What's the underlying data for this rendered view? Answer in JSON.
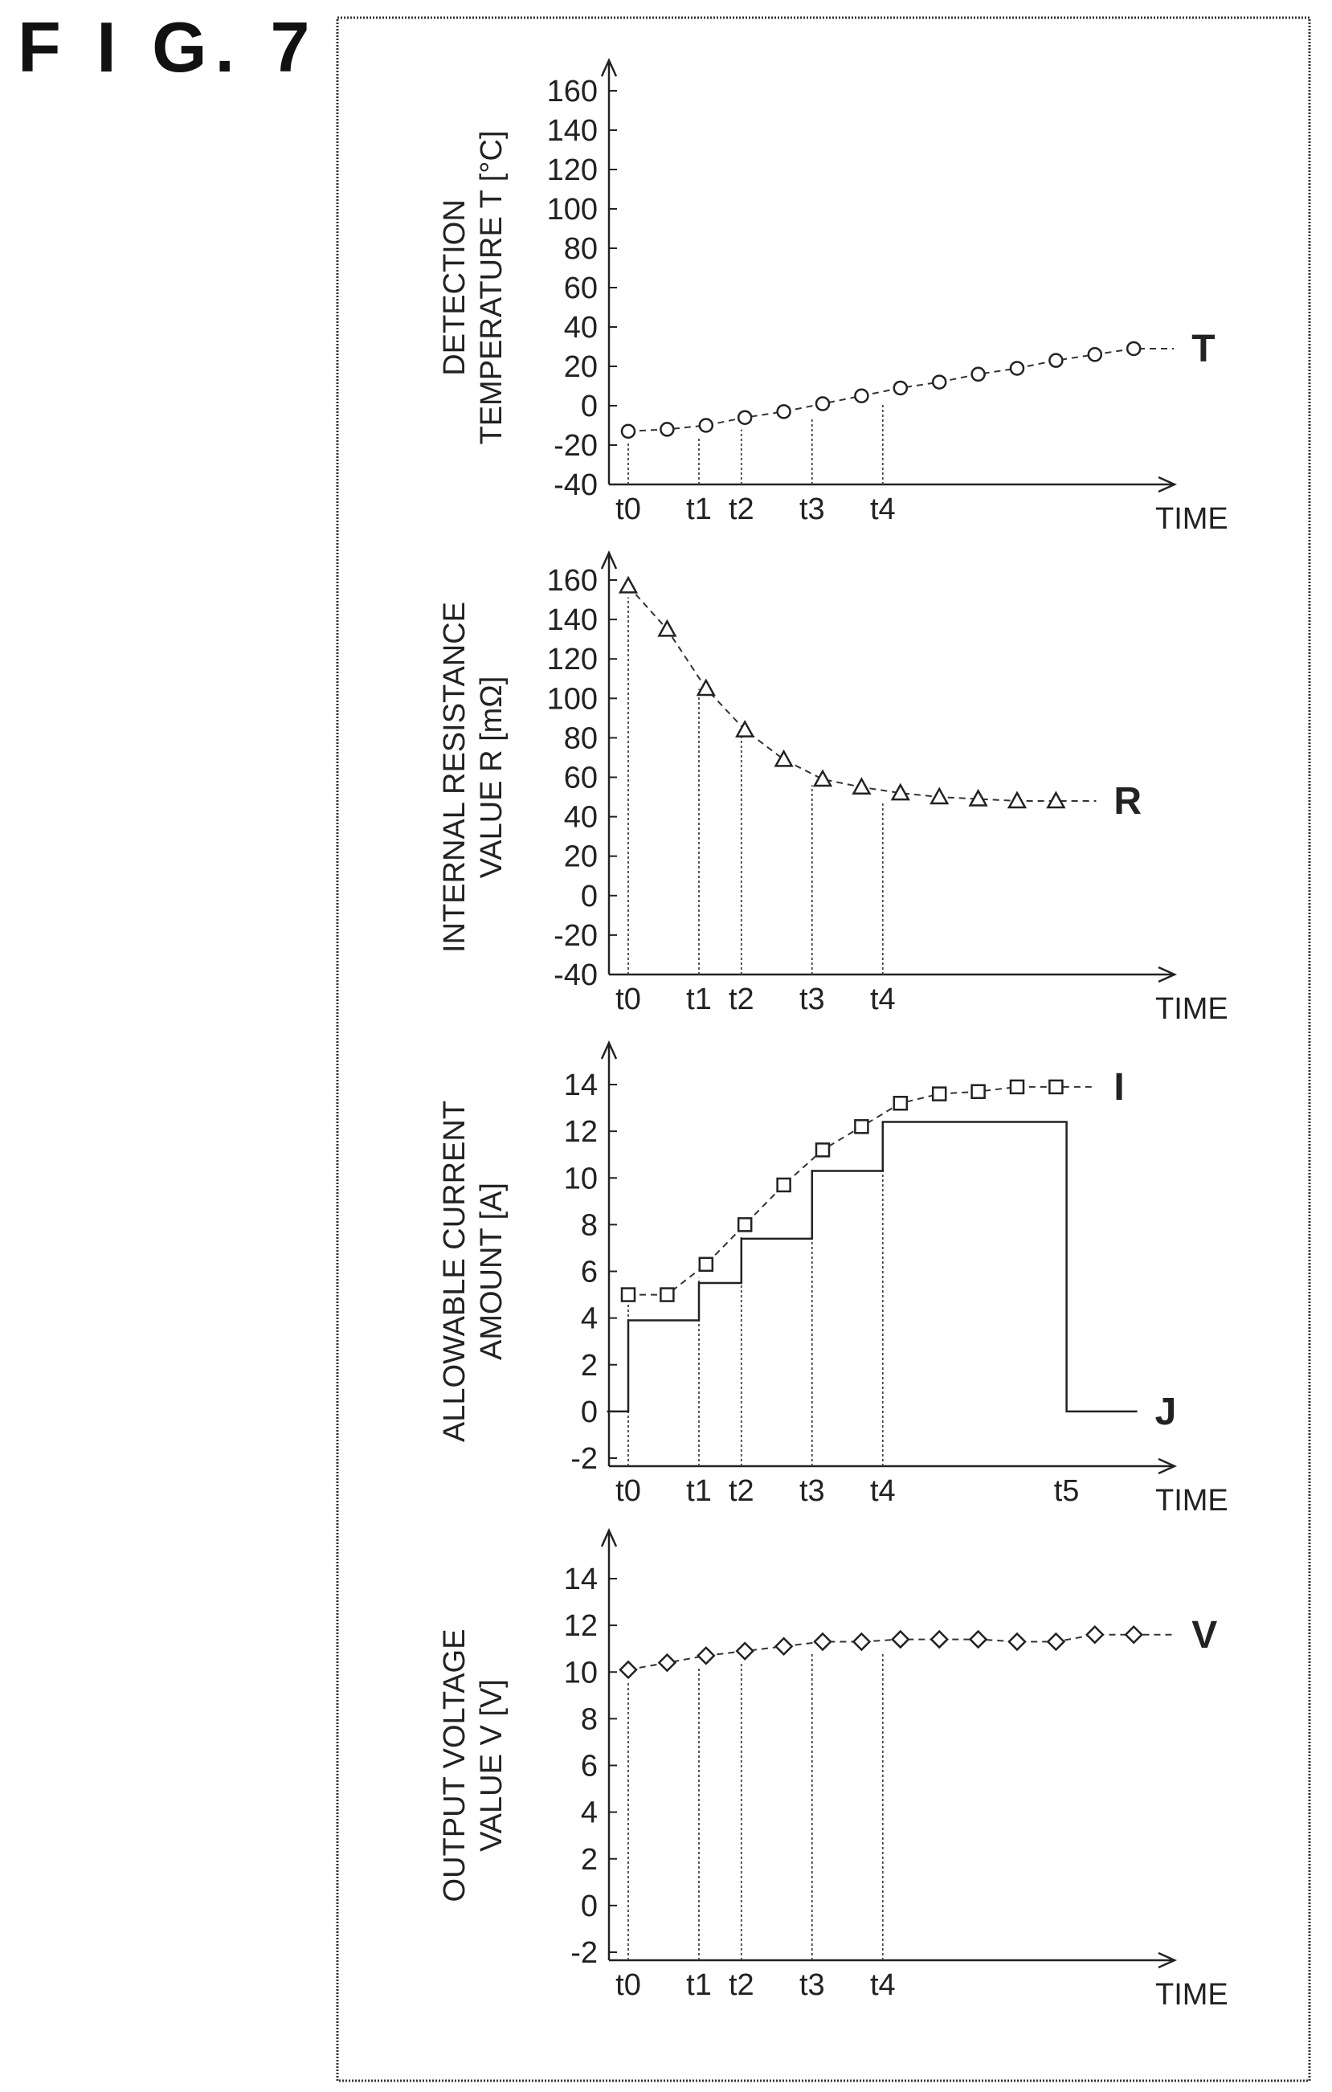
{
  "figure": {
    "title": "F I G. 7"
  },
  "chart_data": [
    {
      "type": "line",
      "ylabel": [
        "DETECTION",
        "TEMPERATURE T [°C]"
      ],
      "xlabel": "TIME",
      "ylim": [
        -40,
        160
      ],
      "yticks": [
        160,
        140,
        120,
        100,
        80,
        60,
        40,
        20,
        0,
        -20,
        -40
      ],
      "time_markers": [
        {
          "label": "t0",
          "x": 0
        },
        {
          "label": "t1",
          "x": 1
        },
        {
          "label": "t2",
          "x": 1.6
        },
        {
          "label": "t3",
          "x": 2.6
        },
        {
          "label": "t4",
          "x": 3.6
        }
      ],
      "series": [
        {
          "name": "T",
          "marker": "circle",
          "x": [
            0,
            0.55,
            1.1,
            1.65,
            2.2,
            2.75,
            3.3,
            3.85,
            4.4,
            4.95,
            5.5,
            6.05,
            6.6,
            7.15
          ],
          "values": [
            -13,
            -12,
            -10,
            -6,
            -3,
            1,
            5,
            9,
            12,
            16,
            19,
            23,
            26,
            29
          ]
        }
      ]
    },
    {
      "type": "line",
      "ylabel": [
        "INTERNAL RESISTANCE",
        "VALUE R [mΩ]"
      ],
      "xlabel": "TIME",
      "ylim": [
        -40,
        160
      ],
      "yticks": [
        160,
        140,
        120,
        100,
        80,
        60,
        40,
        20,
        0,
        -20,
        -40
      ],
      "time_markers": [
        {
          "label": "t0",
          "x": 0
        },
        {
          "label": "t1",
          "x": 1
        },
        {
          "label": "t2",
          "x": 1.6
        },
        {
          "label": "t3",
          "x": 2.6
        },
        {
          "label": "t4",
          "x": 3.6
        }
      ],
      "series": [
        {
          "name": "R",
          "marker": "triangle",
          "x": [
            0,
            0.55,
            1.1,
            1.65,
            2.2,
            2.75,
            3.3,
            3.85,
            4.4,
            4.95,
            5.5,
            6.05
          ],
          "values": [
            157,
            135,
            105,
            84,
            69,
            59,
            55,
            52,
            50,
            49,
            48,
            48
          ]
        }
      ]
    },
    {
      "type": "line",
      "ylabel": [
        "ALLOWABLE CURRENT",
        "AMOUNT [A]"
      ],
      "xlabel": "TIME",
      "ylim": [
        -2,
        14
      ],
      "yticks": [
        14,
        12,
        10,
        8,
        6,
        4,
        2,
        0,
        -2
      ],
      "time_markers": [
        {
          "label": "t0",
          "x": 0
        },
        {
          "label": "t1",
          "x": 1
        },
        {
          "label": "t2",
          "x": 1.6
        },
        {
          "label": "t3",
          "x": 2.6
        },
        {
          "label": "t4",
          "x": 3.6
        },
        {
          "label": "t5",
          "x": 6.2
        }
      ],
      "series": [
        {
          "name": "I",
          "marker": "square",
          "x": [
            0,
            0.55,
            1.1,
            1.65,
            2.2,
            2.75,
            3.3,
            3.85,
            4.4,
            4.95,
            5.5,
            6.05
          ],
          "values": [
            5.0,
            5.0,
            6.3,
            8.0,
            9.7,
            11.2,
            12.2,
            13.2,
            13.6,
            13.7,
            13.9,
            13.9
          ]
        },
        {
          "name": "J",
          "style": "step",
          "points": [
            [
              -0.3,
              0
            ],
            [
              0,
              0
            ],
            [
              0,
              3.9
            ],
            [
              1,
              3.9
            ],
            [
              1,
              5.5
            ],
            [
              1.6,
              5.5
            ],
            [
              1.6,
              7.4
            ],
            [
              2.6,
              7.4
            ],
            [
              2.6,
              10.3
            ],
            [
              3.6,
              10.3
            ],
            [
              3.6,
              12.4
            ],
            [
              6.2,
              12.4
            ],
            [
              6.2,
              0
            ],
            [
              7.2,
              0
            ]
          ]
        }
      ]
    },
    {
      "type": "line",
      "ylabel": [
        "OUTPUT VOLTAGE",
        "VALUE V [V]"
      ],
      "xlabel": "TIME",
      "ylim": [
        -2,
        14
      ],
      "yticks": [
        14,
        12,
        10,
        8,
        6,
        4,
        2,
        0,
        -2
      ],
      "time_markers": [
        {
          "label": "t0",
          "x": 0
        },
        {
          "label": "t1",
          "x": 1
        },
        {
          "label": "t2",
          "x": 1.6
        },
        {
          "label": "t3",
          "x": 2.6
        },
        {
          "label": "t4",
          "x": 3.6
        }
      ],
      "series": [
        {
          "name": "V",
          "marker": "diamond",
          "x": [
            0,
            0.55,
            1.1,
            1.65,
            2.2,
            2.75,
            3.3,
            3.85,
            4.4,
            4.95,
            5.5,
            6.05,
            6.6,
            7.15
          ],
          "values": [
            10.1,
            10.4,
            10.7,
            10.9,
            11.1,
            11.3,
            11.3,
            11.4,
            11.4,
            11.4,
            11.3,
            11.3,
            11.6,
            11.6
          ]
        }
      ]
    }
  ]
}
